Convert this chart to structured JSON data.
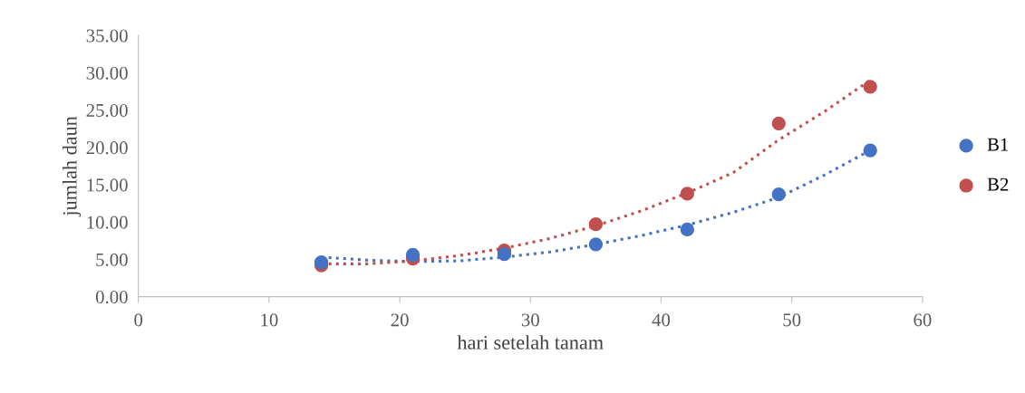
{
  "chart_data": {
    "type": "scatter",
    "xlabel": "hari setelah tanam",
    "ylabel": "jumlah daun",
    "x": [
      14,
      21,
      28,
      35,
      42,
      49,
      56
    ],
    "series": [
      {
        "name": "B1",
        "color": "#4472c4",
        "values": [
          4.6,
          5.6,
          5.7,
          7.0,
          9.0,
          13.7,
          19.6
        ]
      },
      {
        "name": "B2",
        "color": "#c0504d",
        "values": [
          4.2,
          5.1,
          6.2,
          9.7,
          13.8,
          23.2,
          28.1
        ]
      },
      {
        "type": "line",
        "line_style": "dotted",
        "marker": "none",
        "color": "#4472c4",
        "x": [
          14,
          17.5,
          21,
          24.5,
          28,
          31.5,
          35,
          38.5,
          42,
          45.5,
          49,
          52.5,
          56
        ],
        "values": [
          5.3,
          4.9,
          4.7,
          4.8,
          5.3,
          6.0,
          7.0,
          8.2,
          9.6,
          11.3,
          13.3,
          16.3,
          19.6
        ]
      },
      {
        "type": "line",
        "line_style": "dotted",
        "marker": "none",
        "color": "#c0504d",
        "x": [
          14,
          17.5,
          21,
          24.5,
          28,
          31.5,
          35,
          38.5,
          42,
          45.5,
          49,
          52.5,
          56
        ],
        "values": [
          4.4,
          4.4,
          4.8,
          5.5,
          6.5,
          7.8,
          9.5,
          11.5,
          13.9,
          16.6,
          21.0,
          24.8,
          29.0
        ]
      }
    ],
    "marker": "circle",
    "xlim": [
      0,
      60
    ],
    "xticks": [
      0,
      10,
      20,
      30,
      40,
      50,
      60
    ],
    "ylim": [
      0,
      35
    ],
    "yticks": [
      {
        "value": 0,
        "label": "0.00"
      },
      {
        "value": 5,
        "label": "5.00"
      },
      {
        "value": 10,
        "label": "10.00"
      },
      {
        "value": 15,
        "label": "15.00"
      },
      {
        "value": 20,
        "label": "20.00"
      },
      {
        "value": 25,
        "label": "25.00"
      },
      {
        "value": 30,
        "label": "30.00"
      },
      {
        "value": 35,
        "label": "35.00"
      }
    ],
    "grid": false,
    "legend": "right"
  }
}
